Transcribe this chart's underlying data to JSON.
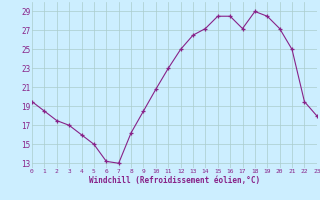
{
  "x": [
    0,
    1,
    2,
    3,
    4,
    5,
    6,
    7,
    8,
    9,
    10,
    11,
    12,
    13,
    14,
    15,
    16,
    17,
    18,
    19,
    20,
    21,
    22,
    23
  ],
  "y": [
    19.5,
    18.5,
    17.5,
    17.0,
    16.0,
    15.0,
    13.2,
    13.0,
    16.2,
    18.5,
    20.8,
    23.0,
    25.0,
    26.5,
    27.2,
    28.5,
    28.5,
    27.2,
    29.0,
    28.5,
    27.2,
    25.0,
    19.5,
    18.0
  ],
  "line_color": "#882288",
  "marker": "+",
  "marker_color": "#882288",
  "bg_color": "#cceeff",
  "grid_color": "#aacccc",
  "xlabel": "Windchill (Refroidissement éolien,°C)",
  "tick_color": "#882288",
  "xlim": [
    0,
    23
  ],
  "ylim": [
    12.5,
    30
  ],
  "yticks": [
    13,
    15,
    17,
    19,
    21,
    23,
    25,
    27,
    29
  ],
  "xticks": [
    0,
    1,
    2,
    3,
    4,
    5,
    6,
    7,
    8,
    9,
    10,
    11,
    12,
    13,
    14,
    15,
    16,
    17,
    18,
    19,
    20,
    21,
    22,
    23
  ]
}
